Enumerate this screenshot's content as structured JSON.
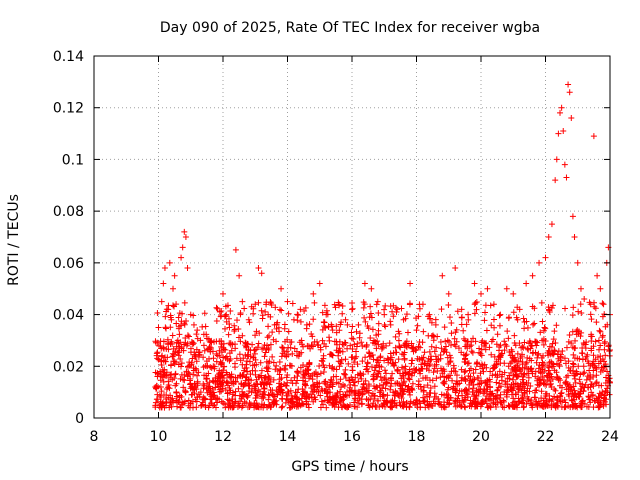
{
  "chart_data": {
    "type": "scatter",
    "title": "Day 090 of 2025, Rate Of TEC Index for receiver wgba",
    "xlabel": "GPS time / hours",
    "ylabel": "ROTI / TECUs",
    "xlim": [
      8,
      24
    ],
    "ylim": [
      0,
      0.14
    ],
    "xticks": [
      8,
      10,
      12,
      14,
      16,
      18,
      20,
      22,
      24
    ],
    "xtick_labels": [
      "8",
      "10",
      "12",
      "14",
      "16",
      "18",
      "20",
      "22",
      "24"
    ],
    "yticks": [
      0,
      0.02,
      0.04,
      0.06,
      0.08,
      0.1,
      0.12,
      0.14
    ],
    "ytick_labels": [
      "0",
      "0.02",
      "0.04",
      "0.06",
      "0.08",
      "0.1",
      "0.12",
      "0.14"
    ],
    "grid": true,
    "marker": "plus",
    "color": "#ff0000",
    "series": [
      {
        "name": "ROTI",
        "points": [
          [
            9.9,
            0.012
          ],
          [
            9.95,
            0.025
          ],
          [
            10.0,
            0.035
          ],
          [
            10.05,
            0.018
          ],
          [
            10.1,
            0.045
          ],
          [
            10.15,
            0.052
          ],
          [
            10.2,
            0.058
          ],
          [
            10.3,
            0.042
          ],
          [
            10.35,
            0.06
          ],
          [
            10.4,
            0.038
          ],
          [
            10.45,
            0.05
          ],
          [
            10.5,
            0.055
          ],
          [
            10.6,
            0.03
          ],
          [
            10.7,
            0.062
          ],
          [
            10.75,
            0.066
          ],
          [
            10.8,
            0.072
          ],
          [
            10.85,
            0.07
          ],
          [
            10.9,
            0.058
          ],
          [
            11.0,
            0.04
          ],
          [
            11.1,
            0.036
          ],
          [
            11.2,
            0.034
          ],
          [
            11.3,
            0.03
          ],
          [
            11.5,
            0.022
          ],
          [
            11.7,
            0.02
          ],
          [
            11.9,
            0.024
          ],
          [
            12.0,
            0.048
          ],
          [
            12.1,
            0.04
          ],
          [
            12.2,
            0.035
          ],
          [
            12.4,
            0.065
          ],
          [
            12.5,
            0.055
          ],
          [
            12.6,
            0.045
          ],
          [
            12.8,
            0.038
          ],
          [
            13.0,
            0.044
          ],
          [
            13.1,
            0.058
          ],
          [
            13.2,
            0.056
          ],
          [
            13.4,
            0.04
          ],
          [
            13.6,
            0.036
          ],
          [
            13.8,
            0.05
          ],
          [
            14.0,
            0.045
          ],
          [
            14.2,
            0.038
          ],
          [
            14.4,
            0.042
          ],
          [
            14.6,
            0.036
          ],
          [
            14.8,
            0.048
          ],
          [
            15.0,
            0.052
          ],
          [
            15.2,
            0.04
          ],
          [
            15.4,
            0.034
          ],
          [
            15.6,
            0.044
          ],
          [
            15.8,
            0.038
          ],
          [
            16.0,
            0.042
          ],
          [
            16.2,
            0.036
          ],
          [
            16.4,
            0.052
          ],
          [
            16.6,
            0.05
          ],
          [
            16.8,
            0.045
          ],
          [
            17.0,
            0.04
          ],
          [
            17.2,
            0.036
          ],
          [
            17.4,
            0.042
          ],
          [
            17.6,
            0.038
          ],
          [
            17.8,
            0.052
          ],
          [
            18.0,
            0.034
          ],
          [
            18.2,
            0.044
          ],
          [
            18.4,
            0.04
          ],
          [
            18.6,
            0.036
          ],
          [
            18.8,
            0.055
          ],
          [
            19.0,
            0.048
          ],
          [
            19.2,
            0.058
          ],
          [
            19.4,
            0.042
          ],
          [
            19.6,
            0.04
          ],
          [
            19.8,
            0.052
          ],
          [
            20.0,
            0.048
          ],
          [
            20.2,
            0.05
          ],
          [
            20.4,
            0.044
          ],
          [
            20.6,
            0.04
          ],
          [
            20.8,
            0.05
          ],
          [
            21.0,
            0.048
          ],
          [
            21.2,
            0.042
          ],
          [
            21.4,
            0.052
          ],
          [
            21.6,
            0.055
          ],
          [
            21.8,
            0.06
          ],
          [
            22.0,
            0.062
          ],
          [
            22.1,
            0.07
          ],
          [
            22.2,
            0.075
          ],
          [
            22.3,
            0.092
          ],
          [
            22.35,
            0.1
          ],
          [
            22.4,
            0.11
          ],
          [
            22.45,
            0.118
          ],
          [
            22.5,
            0.12
          ],
          [
            22.55,
            0.111
          ],
          [
            22.6,
            0.098
          ],
          [
            22.65,
            0.093
          ],
          [
            22.7,
            0.129
          ],
          [
            22.75,
            0.126
          ],
          [
            22.8,
            0.116
          ],
          [
            22.85,
            0.078
          ],
          [
            22.9,
            0.07
          ],
          [
            23.0,
            0.06
          ],
          [
            23.1,
            0.05
          ],
          [
            23.2,
            0.046
          ],
          [
            23.4,
            0.044
          ],
          [
            23.5,
            0.109
          ],
          [
            23.6,
            0.055
          ],
          [
            23.7,
            0.05
          ],
          [
            23.8,
            0.044
          ],
          [
            23.9,
            0.06
          ],
          [
            23.95,
            0.066
          ],
          [
            24.0,
            0.04
          ]
        ],
        "band": {
          "x_start": 9.9,
          "x_end": 24.0,
          "baseline_min": 0.004,
          "baseline_max": 0.03,
          "typical_peak": 0.045
        }
      }
    ]
  }
}
